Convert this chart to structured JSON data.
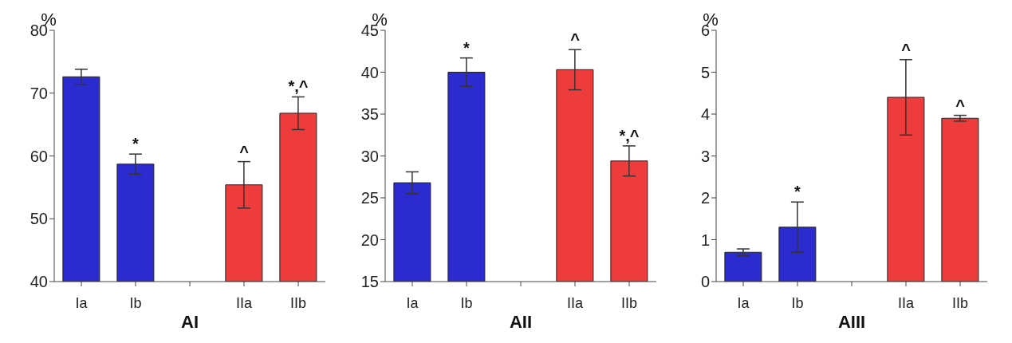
{
  "chart_data": [
    {
      "type": "bar",
      "xlabel": "AI",
      "ylabel": "%",
      "categories": [
        "Ia",
        "Ib",
        null,
        "IIa",
        "IIb"
      ],
      "values": [
        72.6,
        58.7,
        null,
        55.4,
        66.8
      ],
      "errors": [
        1.2,
        1.6,
        null,
        3.7,
        2.6
      ],
      "colors": [
        "#2b2bd0",
        "#2b2bd0",
        "#ffffff",
        "#ee3b3b",
        "#ee3b3b"
      ],
      "ylim": [
        40,
        80
      ],
      "yticks": [
        40,
        50,
        60,
        70,
        80
      ],
      "grid": false,
      "annotations": [
        {
          "text": "*",
          "x": "Ib",
          "y": 58.7
        },
        {
          "text": "^",
          "x": "IIa",
          "y": 55.4
        },
        {
          "text": "*,^",
          "x": "IIb",
          "y": 66.8
        }
      ]
    },
    {
      "type": "bar",
      "xlabel": "AII",
      "ylabel": "%",
      "categories": [
        "Ia",
        "Ib",
        null,
        "IIa",
        "IIb"
      ],
      "values": [
        26.8,
        40.0,
        null,
        40.3,
        29.4
      ],
      "errors": [
        1.3,
        1.7,
        null,
        2.4,
        1.8
      ],
      "colors": [
        "#2b2bd0",
        "#2b2bd0",
        "#ffffff",
        "#ee3b3b",
        "#ee3b3b"
      ],
      "ylim": [
        15,
        45
      ],
      "yticks": [
        15,
        20,
        25,
        30,
        35,
        40,
        45
      ],
      "grid": false,
      "annotations": [
        {
          "text": "*",
          "x": "Ib",
          "y": 40.0
        },
        {
          "text": "^",
          "x": "IIa",
          "y": 40.3
        },
        {
          "text": "*,^",
          "x": "IIb",
          "y": 29.4
        }
      ]
    },
    {
      "type": "bar",
      "xlabel": "AIII",
      "ylabel": "%",
      "categories": [
        "Ia",
        "Ib",
        null,
        "IIa",
        "IIb"
      ],
      "values": [
        0.7,
        1.3,
        null,
        4.4,
        3.9
      ],
      "errors": [
        0.08,
        0.6,
        null,
        0.9,
        0.07
      ],
      "colors": [
        "#2b2bd0",
        "#2b2bd0",
        "#ffffff",
        "#ee3b3b",
        "#ee3b3b"
      ],
      "ylim": [
        0,
        6
      ],
      "yticks": [
        0,
        1,
        2,
        3,
        4,
        5,
        6
      ],
      "grid": false,
      "annotations": [
        {
          "text": "*",
          "x": "Ib",
          "y": 1.3
        },
        {
          "text": "^",
          "x": "IIa",
          "y": 4.4
        },
        {
          "text": "^",
          "x": "IIb",
          "y": 3.9
        }
      ]
    }
  ]
}
